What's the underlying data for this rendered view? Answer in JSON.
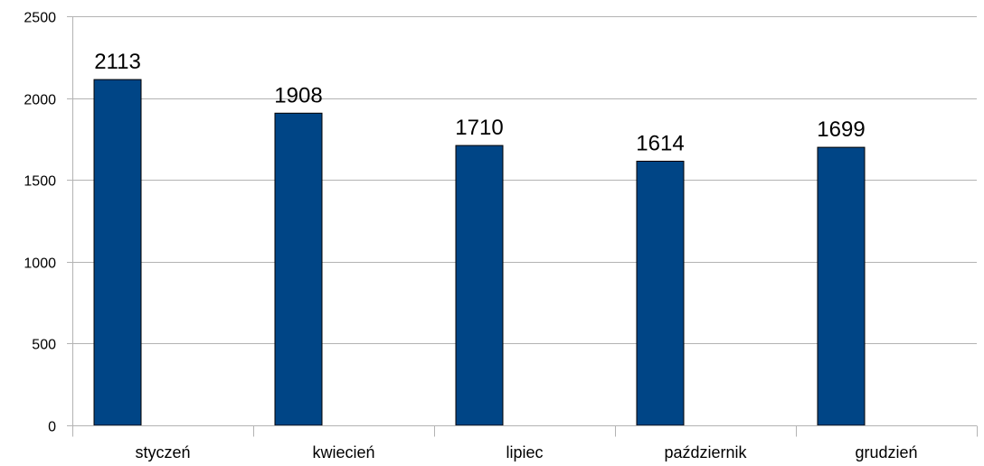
{
  "chart_data": {
    "type": "bar",
    "categories": [
      "styczeń",
      "kwiecień",
      "lipiec",
      "październik",
      "grudzień"
    ],
    "values": [
      2113,
      1908,
      1710,
      1614,
      1699
    ],
    "title": "",
    "xlabel": "",
    "ylabel": "",
    "ylim": [
      0,
      2500
    ],
    "yticks": [
      0,
      500,
      1000,
      1500,
      2000,
      2500
    ],
    "grid": true,
    "legend": "none",
    "data_labels": true,
    "colors": {
      "bar": "#004586",
      "bar_edge": "#000000",
      "grid": "#b3b3b3",
      "axis": "#b3b3b3",
      "text": "#000000"
    }
  }
}
